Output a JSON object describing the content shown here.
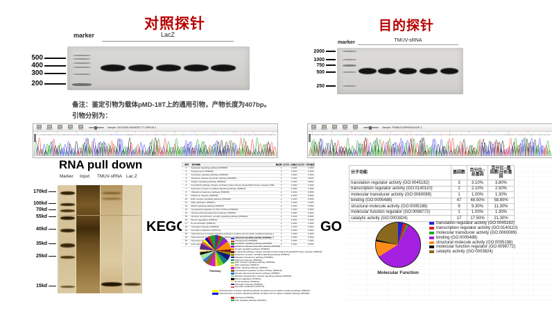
{
  "titles": {
    "control": "对照探针",
    "target": "目的探针",
    "pulldown": "RNA pull down",
    "kegg": "KEGG",
    "go": "GO"
  },
  "control_gel": {
    "marker": "marker",
    "group": "LacZ",
    "ladder": [
      "500",
      "400",
      "300",
      "200"
    ]
  },
  "target_gel": {
    "marker": "marker",
    "group": "TMUV-sRNA",
    "ladder": [
      "2000",
      "1000",
      "750",
      "500",
      "250"
    ]
  },
  "notes": {
    "line1": "备注：鉴定引物为载体pMD-18T上的通用引物，产物长度为407bp。",
    "line2": "引物分别为："
  },
  "chromatogram": {
    "toolbar": [
      "Open",
      "Export",
      "Print",
      "Next",
      "Find"
    ],
    "left_sample": "Sample: 20210326-0000628T-T7-24PN-M-1",
    "right_sample": "Sample: P0088-2104P0026-M13F-1",
    "trace_colors": [
      "#1fa01f",
      "#4444ee",
      "#e83a3a",
      "#1b1b1b"
    ]
  },
  "pulldown": {
    "lanes": [
      "Marker",
      "Input",
      "TMUV-sRNA",
      "Lac Z"
    ],
    "ladder": [
      "170kd",
      "100kd",
      "70kd",
      "55kd",
      "40kd",
      "35kd",
      "25kd",
      "15kd"
    ]
  },
  "kegg": {
    "caption": "Pathway",
    "headers": [
      "编号",
      "信号通路",
      "基因数",
      "百分比--总基因",
      "百分比--分析基因"
    ],
    "rows": [
      {
        "n": "1",
        "name": "Apoptosis signaling pathway (P00006)",
        "genes": "1",
        "p1": "1.00%",
        "p2": "1.30%",
        "color": "#2e2ecc"
      },
      {
        "n": "2",
        "name": "Angiogenesis (P00005)",
        "genes": "1",
        "p1": "1.00%",
        "p2": "1.30%",
        "color": "#cc2020"
      },
      {
        "n": "3",
        "name": "Interleukin signaling pathway (P00036)",
        "genes": "1",
        "p1": "1.00%",
        "p2": "1.30%",
        "color": "#1f9e1f"
      },
      {
        "n": "4",
        "name": "Alzheimer disease-presenilin pathway (P00004)",
        "genes": "2",
        "p1": "2.10%",
        "p2": "2.50%",
        "color": "#9b20cc"
      },
      {
        "n": "5",
        "name": "Integrin signalling pathway (P00034)",
        "genes": "3",
        "p1": "3.10%",
        "p2": "3.80%",
        "color": "#ff8c00"
      },
      {
        "n": "6",
        "name": "Insulin/IGF pathway-mitogen activated protein kinase kinase/MAP kinase cascade (P00032)",
        "genes": "1",
        "p1": "1.00%",
        "p2": "1.30%",
        "color": "#7a1414"
      },
      {
        "n": "7",
        "name": "Dopamine receptor mediated signaling pathway (P05912)",
        "genes": "1",
        "p1": "1.00%",
        "p2": "1.30%",
        "color": "#8f8f00"
      },
      {
        "n": "8",
        "name": "Ubiquitin proteasome pathway (P00060)",
        "genes": "2",
        "p1": "2.10%",
        "p2": "2.50%",
        "color": "#14147a"
      },
      {
        "n": "9",
        "name": "Parkinson disease (P00049)",
        "genes": "2",
        "p1": "2.10%",
        "p2": "2.50%",
        "color": "#0f8080"
      },
      {
        "n": "10",
        "name": "EGF receptor signaling pathway (P00018)",
        "genes": "2",
        "p1": "2.10%",
        "p2": "2.50%",
        "color": "#7ecb1f"
      },
      {
        "n": "11",
        "name": "DNA replication (P00017)",
        "genes": "1",
        "p1": "1.00%",
        "p2": "1.30%",
        "color": "#ffd700"
      },
      {
        "n": "12",
        "name": "PDGF signaling pathway (P00047)",
        "genes": "2",
        "p1": "2.10%",
        "p2": "2.50%",
        "color": "#cc20cc"
      },
      {
        "n": "13",
        "name": "Cytoskeletal regulation by Rho GTPase (P00016)",
        "genes": "2",
        "p1": "2.10%",
        "p2": "2.50%",
        "color": "#8a5a28"
      },
      {
        "n": "14",
        "name": "Nicotine pharmacodynamics pathway (P06587)",
        "genes": "1",
        "p1": "1.00%",
        "p2": "1.30%",
        "color": "#2a7ae0"
      },
      {
        "n": "15",
        "name": "Nicotinic acetylcholine receptor signaling pathway (P00044)",
        "genes": "2",
        "p1": "2.10%",
        "p2": "2.50%",
        "color": "#a7e0a7"
      },
      {
        "n": "16",
        "name": "Blood coagulation (P00011)",
        "genes": "1",
        "p1": "1.00%",
        "p2": "1.30%",
        "color": "#111111"
      },
      {
        "n": "17",
        "name": "B cell activation (P00010)",
        "genes": "1",
        "p1": "1.00%",
        "p2": "1.30%",
        "color": "#ffe08a"
      },
      {
        "n": "18",
        "name": "Huntington disease (P00029)",
        "genes": "2",
        "p1": "2.10%",
        "p2": "2.50%",
        "color": "#5a2a8a"
      },
      {
        "n": "19",
        "name": "Pyruvate metabolism (P02772)",
        "genes": "1",
        "p1": "1.00%",
        "p2": "1.30%",
        "color": "#e05a5a"
      },
      {
        "n": "20",
        "name": "Heterotrimeric G-protein signaling pathway-Gq alpha and Go alpha mediated pathway (P00027)",
        "genes": "1",
        "p1": "1.00%",
        "p2": "1.30%",
        "color": "#ffff00",
        "wide": true,
        "gap": true
      },
      {
        "n": "21",
        "name": "Heterotrimeric G-protein signaling pathway-Gi alpha and Gs alpha mediated pathway (P00026)",
        "genes": "1",
        "p1": "1.00%",
        "p2": "1.30%",
        "color": "#0000cc",
        "wide": true
      },
      {
        "n": "22",
        "name": "Glycolysis (P00024)",
        "genes": "1",
        "p1": "1.00%",
        "p2": "1.30%",
        "color": "#cc2020",
        "gap": true
      },
      {
        "n": "23",
        "name": "FGF signaling pathway (P00021)",
        "genes": "2",
        "p1": "2.10%",
        "p2": "2.50%",
        "color": "#1f9e1f"
      }
    ]
  },
  "go": {
    "caption": "Molecular Function",
    "headers": [
      "分子功能",
      "基因数",
      "百分比--总基因",
      "百分比--基因数/分析基因"
    ],
    "rows": [
      {
        "name": "translation regulator activity (GO:0045182)",
        "genes": "3",
        "p1": "3.10%",
        "p2": "3.80%",
        "color": "#2222dd",
        "value": 3.8
      },
      {
        "name": "transcription regulator activity (GO:0140110)",
        "genes": "2",
        "p1": "2.10%",
        "p2": "2.50%",
        "color": "#dd2222",
        "value": 2.5
      },
      {
        "name": "molecular transducer activity (GO:0060089)",
        "genes": "1",
        "p1": "1.00%",
        "p2": "1.30%",
        "color": "#1faf1f",
        "value": 1.3
      },
      {
        "name": "binding (GO:0005488)",
        "genes": "47",
        "p1": "48.50%",
        "p2": "58.80%",
        "color": "#a51fe0",
        "value": 58.8
      },
      {
        "name": "structural molecule activity (GO:0005198)",
        "genes": "9",
        "p1": "9.30%",
        "p2": "11.30%",
        "color": "#ff8c1a",
        "value": 11.3
      },
      {
        "name": "molecular function regulator (GO:0098772)",
        "genes": "1",
        "p1": "1.00%",
        "p2": "1.30%",
        "color": "#111111",
        "value": 1.3
      },
      {
        "name": "catalytic activity (GO:0003824)",
        "genes": "17",
        "p1": "17.50%",
        "p2": "21.30%",
        "color": "#8a691e",
        "value": 21.3
      }
    ]
  },
  "chart_data": [
    {
      "type": "pie",
      "title": "Pathway",
      "labels": [
        "Apoptosis signaling pathway (P00006)",
        "Angiogenesis (P00005)",
        "Interleukin signaling pathway (P00036)",
        "Alzheimer disease-presenilin pathway (P00004)",
        "Integrin signalling pathway (P00034)",
        "Insulin/IGF pathway-mitogen activated protein kinase kinase/MAP kinase cascade (P00032)",
        "Dopamine receptor mediated signaling pathway (P05912)",
        "Ubiquitin proteasome pathway (P00060)",
        "Parkinson disease (P00049)",
        "EGF receptor signaling pathway (P00018)",
        "DNA replication (P00017)",
        "PDGF signaling pathway (P00047)",
        "Cytoskeletal regulation by Rho GTPase (P00016)",
        "Nicotine pharmacodynamics pathway (P06587)",
        "Nicotinic acetylcholine receptor signaling pathway (P00044)",
        "Blood coagulation (P00011)",
        "B cell activation (P00010)",
        "Huntington disease (P00029)",
        "Pyruvate metabolism (P02772)",
        "Heterotrimeric G-protein signaling pathway-Gq alpha and Go alpha mediated pathway (P00027)",
        "Heterotrimeric G-protein signaling pathway-Gi alpha and Gs alpha mediated pathway (P00026)",
        "Glycolysis (P00024)",
        "FGF signaling pathway (P00021)"
      ],
      "values": [
        1,
        1,
        1,
        2,
        3,
        1,
        1,
        2,
        2,
        2,
        1,
        2,
        2,
        1,
        2,
        1,
        1,
        2,
        1,
        1,
        1,
        1,
        2
      ],
      "legend_position": "right"
    },
    {
      "type": "pie",
      "title": "Molecular Function",
      "labels": [
        "translation regulator activity (GO:0045182)",
        "transcription regulator activity (GO:0140110)",
        "molecular transducer activity (GO:0060089)",
        "binding (GO:0005488)",
        "structural molecule activity (GO:0005198)",
        "molecular function regulator (GO:0098772)",
        "catalytic activity (GO:0003824)"
      ],
      "values": [
        3.8,
        2.5,
        1.3,
        58.8,
        11.3,
        1.3,
        21.3
      ],
      "legend_position": "right"
    }
  ]
}
